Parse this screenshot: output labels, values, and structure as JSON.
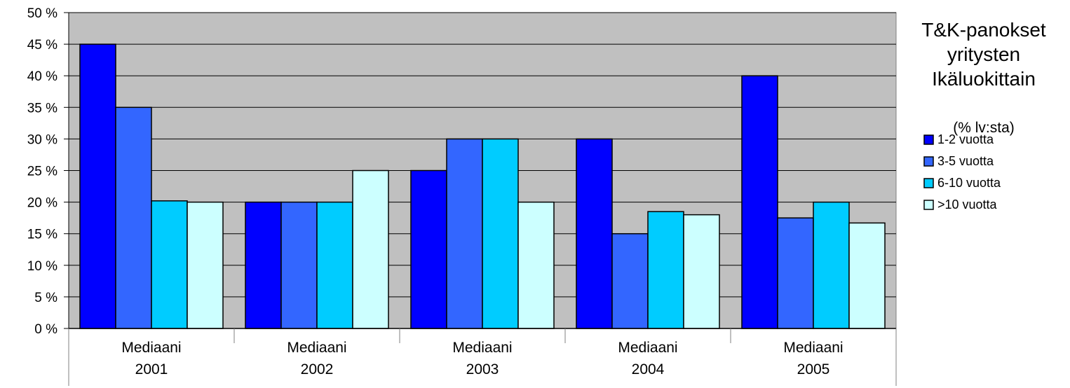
{
  "chart_data": {
    "type": "bar",
    "title": [
      "T&K-panokset",
      "yritysten",
      "Ikäluokittain"
    ],
    "subtitle": "(% lv:sta)",
    "xlabel": "",
    "ylabel": "",
    "ylim": [
      0,
      50
    ],
    "ytick_labels": [
      "0 %",
      "5 %",
      "10 %",
      "15 %",
      "20 %",
      "25 %",
      "30 %",
      "35 %",
      "40 %",
      "45 %",
      "50 %"
    ],
    "categories": [
      [
        "Mediaani",
        "2001"
      ],
      [
        "Mediaani",
        "2002"
      ],
      [
        "Mediaani",
        "2003"
      ],
      [
        "Mediaani",
        "2004"
      ],
      [
        "Mediaani",
        "2005"
      ]
    ],
    "series": [
      {
        "name": "1-2 vuotta",
        "color": "#0000ff",
        "values": [
          45,
          20,
          25,
          30,
          40
        ]
      },
      {
        "name": "3-5 vuotta",
        "color": "#3366ff",
        "values": [
          35,
          20,
          30,
          15,
          17.5
        ]
      },
      {
        "name": "6-10 vuotta",
        "color": "#00ccff",
        "values": [
          20.2,
          20,
          30,
          18.5,
          20
        ]
      },
      {
        "name": ">10 vuotta",
        "color": "#ccffff",
        "values": [
          20,
          25,
          20,
          18,
          16.7
        ]
      }
    ],
    "plot_background": "#c0c0c0",
    "grid": true,
    "legend_position": "right"
  }
}
